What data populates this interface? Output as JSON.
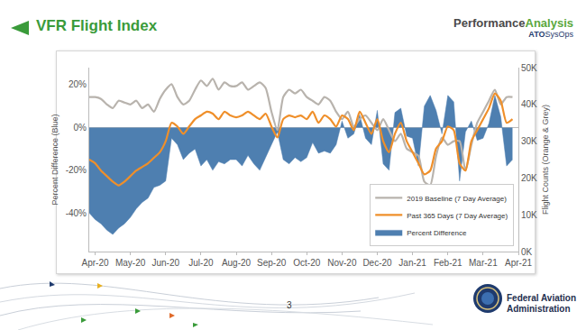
{
  "slide": {
    "title": "VFR Flight Index",
    "logo": {
      "performance": "Performance",
      "analysis": "Analysis",
      "ato": "ATO",
      "sysops": "SysOps"
    },
    "page_number": 3,
    "agency": [
      "Federal Aviation",
      "Administration"
    ]
  },
  "chart_data": {
    "type": "line",
    "y_label": "Percent Difference (Blue)",
    "y2_label": "Flight Counts (Orange & Grey)",
    "categories": [
      null,
      "Apr-20",
      null,
      null,
      null,
      null,
      null,
      "May-20",
      null,
      null,
      null,
      null,
      null,
      "Jun-20",
      null,
      null,
      null,
      null,
      null,
      "Jul-20",
      null,
      null,
      null,
      null,
      null,
      "Aug-20",
      null,
      null,
      null,
      null,
      null,
      "Sep-20",
      null,
      null,
      null,
      null,
      null,
      "Oct-20",
      null,
      null,
      null,
      null,
      null,
      "Nov-20",
      null,
      null,
      null,
      null,
      null,
      "Dec-20",
      null,
      null,
      null,
      null,
      null,
      "Jan-21",
      null,
      null,
      null,
      null,
      null,
      "Feb-21",
      null,
      null,
      null,
      null,
      null,
      "Mar-21",
      null,
      null,
      null,
      null,
      null,
      "Apr-21"
    ],
    "series": [
      {
        "name": "2019 Baseline (7 Day Average)",
        "type": "line",
        "axis": "y2",
        "color": "#b8b3ad",
        "values": [
          42000,
          42000,
          41500,
          40000,
          39000,
          41000,
          40500,
          40000,
          41000,
          39000,
          40000,
          38000,
          41500,
          44000,
          45500,
          42000,
          40000,
          41000,
          44000,
          46500,
          45000,
          47000,
          44000,
          46000,
          45000,
          45000,
          46000,
          44000,
          45000,
          46000,
          44500,
          38000,
          33000,
          42000,
          44000,
          43000,
          44000,
          42000,
          41000,
          40000,
          42000,
          41000,
          38000,
          36000,
          38000,
          34000,
          36000,
          37000,
          35000,
          33000,
          36000,
          33000,
          30000,
          32000,
          28000,
          27000,
          26000,
          19000,
          18000,
          26000,
          31000,
          29000,
          30000,
          30000,
          22000,
          29000,
          35000,
          38000,
          41000,
          44000,
          40000,
          42000,
          42000,
          null
        ]
      },
      {
        "name": "Past 365 Days (7 Day Average)",
        "type": "line",
        "axis": "y2",
        "color": "#ef8f2a",
        "values": [
          25000,
          24000,
          22000,
          20500,
          19000,
          18000,
          19000,
          20500,
          22000,
          23000,
          24000,
          25500,
          27000,
          30000,
          35000,
          34000,
          32000,
          34000,
          36000,
          37000,
          38000,
          37500,
          36000,
          38000,
          37000,
          36500,
          37000,
          38000,
          37000,
          36000,
          37500,
          34000,
          31000,
          36000,
          37000,
          36500,
          37000,
          36000,
          38000,
          35000,
          37000,
          36000,
          34000,
          37000,
          36000,
          33000,
          38000,
          35000,
          32000,
          36000,
          30000,
          27000,
          32000,
          35000,
          30000,
          27000,
          24000,
          21000,
          22000,
          28000,
          30000,
          34000,
          33000,
          24000,
          22000,
          30000,
          33000,
          36000,
          39000,
          43000,
          41000,
          35000,
          36000,
          null
        ]
      },
      {
        "name": "Percent Difference",
        "type": "area",
        "color": "#4e7fb0",
        "values": [
          -40,
          -43,
          -45,
          -48,
          -50,
          -47,
          -45,
          -42,
          -38,
          -35,
          -33,
          -28,
          -27,
          -25,
          -5,
          -8,
          -15,
          -12,
          -10,
          -18,
          -15,
          -20,
          -16,
          -17,
          -15,
          -15,
          -18,
          -13,
          -17,
          -20,
          -14,
          -8,
          -2,
          -15,
          -17,
          -14,
          -16,
          -14,
          -7,
          -12,
          -11,
          -12,
          -8,
          3,
          -5,
          -3,
          6,
          -5,
          -8,
          8,
          -17,
          -20,
          7,
          9,
          -4,
          -5,
          -18,
          10,
          15,
          8,
          -3,
          15,
          12,
          -25,
          -2,
          3,
          -6,
          -5,
          2,
          15,
          5,
          -18,
          -15,
          null
        ]
      }
    ],
    "ylim": [
      -58,
      28
    ],
    "yticks": [
      {
        "value": 20,
        "label": "20%"
      },
      {
        "value": 0,
        "label": "0%"
      },
      {
        "value": -20,
        "label": "-20%"
      },
      {
        "value": -40,
        "label": "-40%"
      }
    ],
    "y2lim": [
      0,
      50000
    ],
    "y2ticks": [
      {
        "value": 0,
        "label": "0K"
      },
      {
        "value": 10000,
        "label": "10K"
      },
      {
        "value": 20000,
        "label": "20K"
      },
      {
        "value": 30000,
        "label": "30K"
      },
      {
        "value": 40000,
        "label": "40K"
      },
      {
        "value": 50000,
        "label": "50K"
      }
    ],
    "legend": "lower right",
    "grid": false
  }
}
